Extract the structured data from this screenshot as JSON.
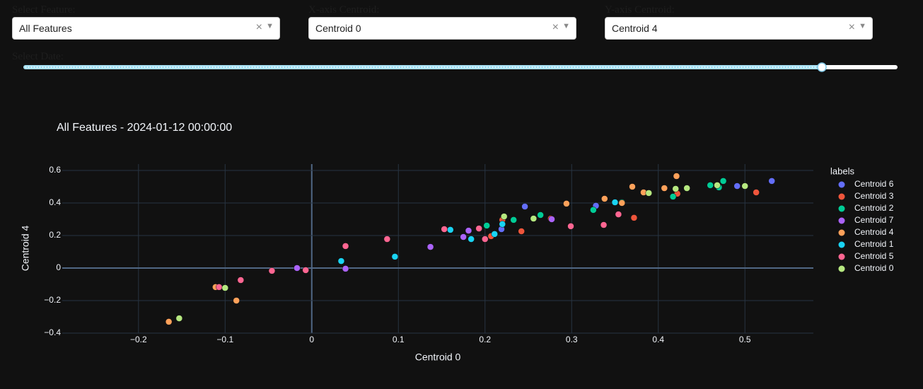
{
  "controls": {
    "feature": {
      "label": "Select Feature:",
      "value": "All Features"
    },
    "x_axis": {
      "label": "X-axis Centroid:",
      "value": "Centroid 0"
    },
    "y_axis": {
      "label": "Y-axis Centroid:",
      "value": "Centroid 4"
    },
    "date": {
      "label": "Select Date:"
    }
  },
  "chart_data": {
    "type": "scatter",
    "title": "All Features - 2024-01-12 00:00:00",
    "x_label": "Centroid 0",
    "y_label": "Centroid 4",
    "legend_title": "labels",
    "legend": "right",
    "grid": true,
    "xlim": [
      -0.288,
      0.579
    ],
    "ylim": [
      -0.4,
      0.639
    ],
    "xticks": [
      {
        "value": -0.2,
        "label": "−0.2"
      },
      {
        "value": -0.1,
        "label": "−0.1"
      },
      0,
      0.1,
      0.2,
      0.3,
      0.4,
      0.5
    ],
    "yticks": [
      {
        "value": -0.4,
        "label": "−0.4"
      },
      {
        "value": -0.2,
        "label": "−0.2"
      },
      0,
      0.2,
      0.4,
      0.6
    ],
    "series": [
      {
        "name": "Centroid 6",
        "color": "#636efa",
        "x": [
          0.246,
          0.328,
          0.491,
          0.531,
          0.219
        ],
        "values": [
          0.378,
          0.383,
          0.504,
          0.535,
          0.239
        ]
      },
      {
        "name": "Centroid 3",
        "color": "#ef553b",
        "x": [
          0.276,
          0.242,
          0.372,
          0.422,
          0.513,
          0.22,
          0.207
        ],
        "values": [
          0.304,
          0.226,
          0.309,
          0.457,
          0.465,
          0.296,
          0.196
        ]
      },
      {
        "name": "Centroid 2",
        "color": "#00cc96",
        "x": [
          0.202,
          0.233,
          0.264,
          0.325,
          0.358,
          0.417,
          0.46,
          0.475,
          0.47
        ],
        "values": [
          0.261,
          0.296,
          0.326,
          0.357,
          0.404,
          0.439,
          0.509,
          0.535,
          0.496
        ]
      },
      {
        "name": "Centroid 7",
        "color": "#ab63fa",
        "x": [
          -0.017,
          0.039,
          0.137,
          0.181,
          0.175,
          0.277
        ],
        "values": [
          0,
          -0.004,
          0.13,
          0.23,
          0.191,
          0.3
        ]
      },
      {
        "name": "Centroid 4",
        "color": "#ffa15a",
        "x": [
          -0.165,
          -0.087,
          -0.111,
          0.294,
          0.338,
          0.358,
          0.37,
          0.383,
          0.407,
          0.421
        ],
        "values": [
          -0.33,
          -0.2,
          -0.117,
          0.396,
          0.426,
          0.4,
          0.5,
          0.465,
          0.491,
          0.565
        ]
      },
      {
        "name": "Centroid 1",
        "color": "#19d3f3",
        "x": [
          0.034,
          0.096,
          0.16,
          0.184,
          0.211,
          0.22,
          0.35
        ],
        "values": [
          0.043,
          0.07,
          0.235,
          0.178,
          0.209,
          0.27,
          0.404
        ]
      },
      {
        "name": "Centroid 5",
        "color": "#ff6692",
        "x": [
          -0.107,
          -0.082,
          -0.046,
          -0.007,
          0.039,
          0.087,
          0.153,
          0.193,
          0.2,
          0.299,
          0.337,
          0.354
        ],
        "values": [
          -0.117,
          -0.074,
          -0.017,
          -0.013,
          0.135,
          0.178,
          0.239,
          0.243,
          0.178,
          0.257,
          0.265,
          0.33
        ]
      },
      {
        "name": "Centroid 0",
        "color": "#b6e880",
        "x": [
          -0.153,
          -0.1,
          0.222,
          0.256,
          0.389,
          0.42,
          0.433,
          0.468,
          0.5
        ],
        "values": [
          -0.309,
          -0.122,
          0.317,
          0.304,
          0.461,
          0.487,
          0.491,
          0.509,
          0.504
        ]
      }
    ]
  }
}
